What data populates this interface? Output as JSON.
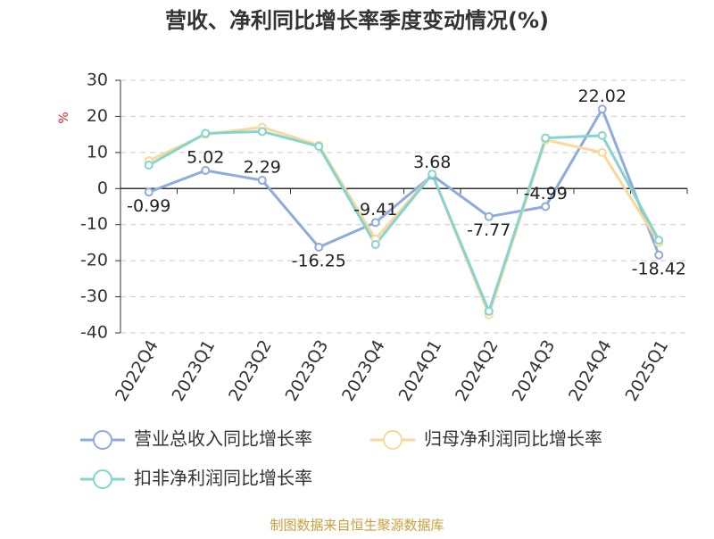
{
  "chart_data": {
    "type": "line",
    "title": "营收、净利同比增长率季度变动情况(%)",
    "y_label": "%",
    "categories": [
      "2022Q4",
      "2023Q1",
      "2023Q2",
      "2023Q3",
      "2023Q4",
      "2024Q1",
      "2024Q2",
      "2024Q3",
      "2024Q4",
      "2025Q1"
    ],
    "series": [
      {
        "name": "营业总收入同比增长率",
        "color": "#8faadc",
        "values": [
          -0.99,
          5.02,
          2.29,
          -16.25,
          -9.41,
          3.68,
          -7.77,
          -4.99,
          22.02,
          -18.42
        ],
        "show_labels": true
      },
      {
        "name": "归母净利润同比增长率",
        "color": "#fad89a",
        "values": [
          7.7,
          15,
          17,
          12,
          -14,
          4,
          -35,
          13.5,
          10,
          -15
        ]
      },
      {
        "name": "扣非净利润同比增长率",
        "color": "#85d4d0",
        "values": [
          6.5,
          15.3,
          15.8,
          11.7,
          -15.5,
          4,
          -34,
          14,
          14.7,
          -14.3
        ]
      }
    ],
    "ylim": [
      -40,
      30
    ],
    "yticks": [
      30,
      20,
      10,
      0,
      -10,
      -20,
      -30,
      -40
    ],
    "grid": true,
    "source": "制图数据来自恒生聚源数据库"
  }
}
